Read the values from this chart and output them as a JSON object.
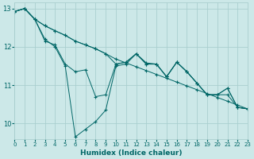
{
  "xlabel": "Humidex (Indice chaleur)",
  "background_color": "#cce8e8",
  "grid_color": "#aacfcf",
  "line_color": "#006666",
  "xlim": [
    0,
    23
  ],
  "ylim": [
    9.6,
    13.15
  ],
  "yticks": [
    10,
    11,
    12,
    13
  ],
  "xticks": [
    0,
    1,
    2,
    3,
    4,
    5,
    6,
    7,
    8,
    9,
    10,
    11,
    12,
    13,
    14,
    15,
    16,
    17,
    18,
    19,
    20,
    21,
    22,
    23
  ],
  "series1": [
    [
      0,
      12.92
    ],
    [
      1,
      13.0
    ],
    [
      2,
      12.72
    ],
    [
      3,
      12.2
    ],
    [
      4,
      12.0
    ],
    [
      5,
      11.5
    ],
    [
      6,
      9.65
    ],
    [
      7,
      9.85
    ],
    [
      8,
      10.05
    ],
    [
      9,
      10.35
    ],
    [
      10,
      11.5
    ],
    [
      11,
      11.55
    ],
    [
      12,
      11.82
    ],
    [
      13,
      11.55
    ],
    [
      14,
      11.55
    ],
    [
      15,
      11.22
    ],
    [
      16,
      11.6
    ],
    [
      17,
      11.35
    ],
    [
      18,
      11.05
    ],
    [
      19,
      10.75
    ],
    [
      20,
      10.75
    ],
    [
      21,
      10.92
    ],
    [
      22,
      10.42
    ],
    [
      23,
      10.38
    ]
  ],
  "series2": [
    [
      0,
      12.92
    ],
    [
      1,
      13.0
    ],
    [
      2,
      12.72
    ],
    [
      3,
      12.15
    ],
    [
      4,
      12.05
    ],
    [
      5,
      11.55
    ],
    [
      6,
      11.35
    ],
    [
      7,
      11.4
    ],
    [
      8,
      10.7
    ],
    [
      9,
      10.75
    ],
    [
      10,
      11.55
    ],
    [
      11,
      11.6
    ],
    [
      12,
      11.82
    ],
    [
      13,
      11.55
    ],
    [
      14,
      11.55
    ],
    [
      15,
      11.22
    ],
    [
      16,
      11.6
    ],
    [
      17,
      11.35
    ],
    [
      18,
      11.05
    ],
    [
      19,
      10.75
    ],
    [
      20,
      10.75
    ],
    [
      21,
      10.92
    ],
    [
      22,
      10.42
    ],
    [
      23,
      10.38
    ]
  ],
  "series3": [
    [
      0,
      12.92
    ],
    [
      1,
      13.0
    ],
    [
      2,
      12.72
    ],
    [
      3,
      12.55
    ],
    [
      4,
      12.42
    ],
    [
      5,
      12.3
    ],
    [
      6,
      12.15
    ],
    [
      7,
      12.05
    ],
    [
      8,
      11.95
    ],
    [
      9,
      11.82
    ],
    [
      10,
      11.68
    ],
    [
      11,
      11.58
    ],
    [
      12,
      11.48
    ],
    [
      13,
      11.38
    ],
    [
      14,
      11.28
    ],
    [
      15,
      11.18
    ],
    [
      16,
      11.08
    ],
    [
      17,
      10.98
    ],
    [
      18,
      10.88
    ],
    [
      19,
      10.78
    ],
    [
      20,
      10.68
    ],
    [
      21,
      10.58
    ],
    [
      22,
      10.48
    ],
    [
      23,
      10.38
    ]
  ],
  "series4": [
    [
      0,
      12.92
    ],
    [
      1,
      13.0
    ],
    [
      2,
      12.72
    ],
    [
      3,
      12.55
    ],
    [
      4,
      12.42
    ],
    [
      5,
      12.3
    ],
    [
      6,
      12.15
    ],
    [
      7,
      12.05
    ],
    [
      8,
      11.95
    ],
    [
      9,
      11.82
    ],
    [
      10,
      11.55
    ],
    [
      11,
      11.6
    ],
    [
      12,
      11.82
    ],
    [
      13,
      11.58
    ],
    [
      14,
      11.55
    ],
    [
      15,
      11.22
    ],
    [
      16,
      11.6
    ],
    [
      17,
      11.35
    ],
    [
      18,
      11.05
    ],
    [
      19,
      10.75
    ],
    [
      20,
      10.75
    ],
    [
      21,
      10.75
    ],
    [
      22,
      10.42
    ],
    [
      23,
      10.38
    ]
  ]
}
